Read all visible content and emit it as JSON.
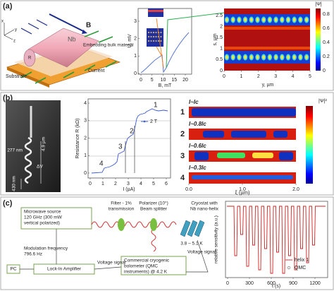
{
  "panels": [
    {
      "label": "(a)",
      "schematic": {
        "field": "B",
        "wire": "Nb",
        "embedding": "Embedding bulk material",
        "substrate": "Substrate",
        "current": "Current",
        "radius": "R",
        "axes": [
          "y",
          "x",
          "z"
        ]
      },
      "plot": {
        "ylabel": "U, mV",
        "yticks": [
          0,
          1,
          2,
          3
        ],
        "xlabel": "B, mT",
        "xticks": [
          0,
          5,
          10,
          15,
          20
        ]
      },
      "map": {
        "ylabel": "s, µm",
        "yticks": [
          0,
          0.5,
          1,
          1.5,
          2,
          2.5
        ],
        "xlabel": "y, µm",
        "xticks": [
          0,
          1,
          2,
          3,
          4,
          5
        ],
        "colorbar_label": "|Ψ|",
        "colorbar_ticks": [
          0,
          0.2,
          0.4,
          0.6,
          0.8
        ]
      }
    },
    {
      "label": "(b)",
      "image": {
        "diameter": "277 nm",
        "length": "4.9 µm",
        "voltage": "ΔV",
        "pitch": "430 nm"
      },
      "plot": {
        "ylabel": "Resistance R (kΩ)",
        "yticks": [
          0,
          1,
          2,
          3,
          4
        ],
        "xlabel": "I (µA)",
        "xticks": [
          0,
          1,
          2,
          3,
          4,
          5,
          6
        ],
        "legend": "2 T",
        "steps": [
          "1",
          "2",
          "3",
          "4"
        ]
      },
      "map": {
        "rows": [
          {
            "number": "1",
            "current": "I~Ic"
          },
          {
            "number": "2",
            "current": "I~0.8Ic"
          },
          {
            "number": "3",
            "current": "I~0.6Ic"
          },
          {
            "number": "4",
            "current": "I~0.3Ic"
          }
        ],
        "xticks": [
          "0.0",
          "1.0",
          "2.0"
        ],
        "xlabel": "ξ (µm)",
        "colorbar_label": "|Ψ|²"
      }
    },
    {
      "label": "(c)",
      "diagram": {
        "source": [
          "Microwave source",
          "120 GHz (300 mW",
          "vertical polarized)"
        ],
        "filter": [
          "Filter - 1%",
          "transmission"
        ],
        "polarizer": [
          "Polarizer (10°)",
          "Beam splitter"
        ],
        "cryostat": [
          "Cryostat with",
          "Nb nano-helix"
        ],
        "temperature": "3.8 – 5.1 K",
        "modulation": [
          "Modulation frequency",
          "796.6 Hz"
        ],
        "bolometer": [
          "Commercial cryogenic",
          "bolometer (QMC",
          "instruments) @ 4.2 K"
        ],
        "voltage_left": "Voltage signal",
        "voltage_right": "Voltage signal",
        "pc": "PC",
        "lockin": "Lock-In Amplifier"
      },
      "plot": {
        "ylabel": "relative sensitivity (a.u.)",
        "xticks": [
          0,
          300,
          600,
          900,
          1200
        ],
        "xlabel": "t (s)",
        "legend": [
          "helix 1",
          "QMC"
        ]
      }
    }
  ]
}
